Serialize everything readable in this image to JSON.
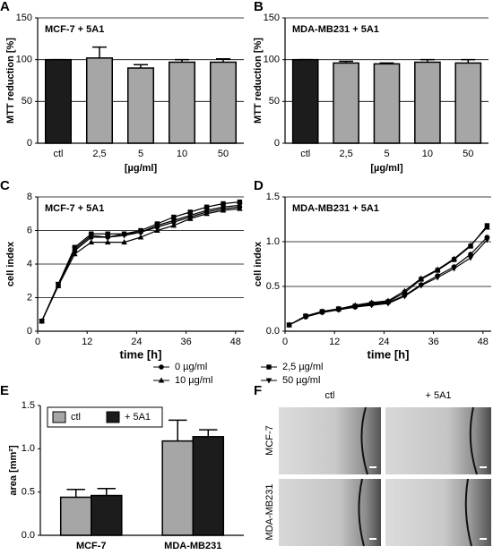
{
  "chart_data": [
    {
      "type": "bar",
      "panel": "A",
      "annotation": "MCF-7 + 5A1",
      "y_label": "MTT reduction [%]",
      "x_label": "[µg/ml]",
      "categories": [
        "ctl",
        "2,5",
        "5",
        "10",
        "50"
      ],
      "values": [
        100,
        102,
        90,
        97,
        97
      ],
      "errors": [
        0,
        13,
        4,
        3,
        4
      ],
      "colors": [
        "#1c1c1c",
        "#a6a6a6",
        "#a6a6a6",
        "#a6a6a6",
        "#a6a6a6"
      ],
      "ylim": [
        0,
        150
      ],
      "yticks": [
        0,
        50,
        100,
        150
      ],
      "grid": true
    },
    {
      "type": "bar",
      "panel": "B",
      "annotation": "MDA-MB231 + 5A1",
      "y_label": "MTT reduction [%]",
      "x_label": "[µg/ml]",
      "categories": [
        "ctl",
        "2,5",
        "5",
        "10",
        "50"
      ],
      "values": [
        100,
        96,
        95,
        97,
        96
      ],
      "errors": [
        0,
        2,
        1,
        3,
        4
      ],
      "colors": [
        "#1c1c1c",
        "#a6a6a6",
        "#a6a6a6",
        "#a6a6a6",
        "#a6a6a6"
      ],
      "ylim": [
        0,
        150
      ],
      "yticks": [
        0,
        50,
        100,
        150
      ],
      "grid": true
    },
    {
      "type": "line",
      "panel": "C",
      "annotation": "MCF-7 + 5A1",
      "y_label": "cell index",
      "x_label": "time [h]",
      "x": [
        1,
        5,
        9,
        13,
        17,
        21,
        25,
        29,
        33,
        37,
        41,
        45,
        49
      ],
      "series": [
        {
          "name": "0 µg/ml",
          "color": "#000000",
          "marker": "circle",
          "values": [
            0.6,
            2.7,
            4.8,
            5.6,
            5.6,
            5.8,
            5.9,
            6.2,
            6.5,
            6.8,
            7.1,
            7.3,
            7.4
          ]
        },
        {
          "name": "2,5 µg/ml",
          "color": "#000000",
          "marker": "square",
          "values": [
            0.6,
            2.8,
            5.0,
            5.8,
            5.8,
            5.8,
            6.0,
            6.4,
            6.8,
            7.1,
            7.4,
            7.6,
            7.7
          ]
        },
        {
          "name": "10 µg/ml",
          "color": "#000000",
          "marker": "triangle-up",
          "values": [
            0.6,
            2.7,
            4.6,
            5.3,
            5.3,
            5.3,
            5.6,
            6.0,
            6.3,
            6.7,
            7.0,
            7.2,
            7.3
          ]
        },
        {
          "name": "50 µg/ml",
          "color": "#000000",
          "marker": "triangle-down",
          "values": [
            0.6,
            2.8,
            4.9,
            5.7,
            5.6,
            5.7,
            5.9,
            6.3,
            6.6,
            6.9,
            7.2,
            7.4,
            7.5
          ]
        }
      ],
      "xlim": [
        0,
        50
      ],
      "xticks": [
        0,
        12,
        24,
        36,
        48
      ],
      "ylim": [
        0,
        8
      ],
      "yticks": [
        0,
        2,
        4,
        6,
        8
      ],
      "grid": true
    },
    {
      "type": "line",
      "panel": "D",
      "annotation": "MDA-MB231 + 5A1",
      "y_label": "cell index",
      "x_label": "time [h]",
      "x": [
        1,
        5,
        9,
        13,
        17,
        21,
        25,
        29,
        33,
        37,
        41,
        45,
        49
      ],
      "series": [
        {
          "color": "#000000",
          "marker": "circle",
          "values": [
            0.07,
            0.16,
            0.21,
            0.24,
            0.27,
            0.3,
            0.32,
            0.4,
            0.52,
            0.62,
            0.72,
            0.86,
            1.05
          ]
        },
        {
          "color": "#000000",
          "marker": "square",
          "values": [
            0.07,
            0.17,
            0.22,
            0.25,
            0.28,
            0.31,
            0.33,
            0.43,
            0.58,
            0.68,
            0.8,
            0.95,
            1.18
          ]
        },
        {
          "color": "#000000",
          "marker": "triangle-up",
          "values": [
            0.07,
            0.17,
            0.22,
            0.25,
            0.29,
            0.32,
            0.34,
            0.45,
            0.59,
            0.69,
            0.81,
            0.96,
            1.16
          ]
        },
        {
          "color": "#000000",
          "marker": "triangle-down",
          "values": [
            0.07,
            0.16,
            0.21,
            0.24,
            0.27,
            0.29,
            0.31,
            0.39,
            0.51,
            0.6,
            0.7,
            0.82,
            1.02
          ]
        }
      ],
      "xlim": [
        0,
        50
      ],
      "xticks": [
        0,
        12,
        24,
        36,
        48
      ],
      "ylim": [
        0,
        1.5
      ],
      "yticks": [
        {
          "value": 0,
          "label": "0.0"
        },
        0.5,
        {
          "value": 1,
          "label": "1.0"
        },
        1.5
      ],
      "grid": true
    },
    {
      "type": "bar",
      "panel": "E",
      "y_label": "area [mm²]",
      "legend": "upper left",
      "categories": [
        "MCF-7",
        "MDA-MB231"
      ],
      "series": [
        {
          "name": "ctl",
          "color": "#a6a6a6",
          "values": [
            0.44,
            1.09
          ],
          "errors": [
            0.09,
            0.24
          ]
        },
        {
          "name": "+ 5A1",
          "color": "#1c1c1c",
          "values": [
            0.46,
            1.14
          ],
          "errors": [
            0.08,
            0.08
          ]
        }
      ],
      "ylim": [
        0,
        1.5
      ],
      "yticks": [
        {
          "value": 0,
          "label": "0.0"
        },
        0.5,
        {
          "value": 1,
          "label": "1.0"
        },
        1.5
      ],
      "grid": false
    }
  ],
  "image_panel": {
    "panel": "F",
    "columns": [
      "ctl",
      "+ 5A1"
    ],
    "rows": [
      "MCF-7",
      "MDA-MB231"
    ]
  }
}
